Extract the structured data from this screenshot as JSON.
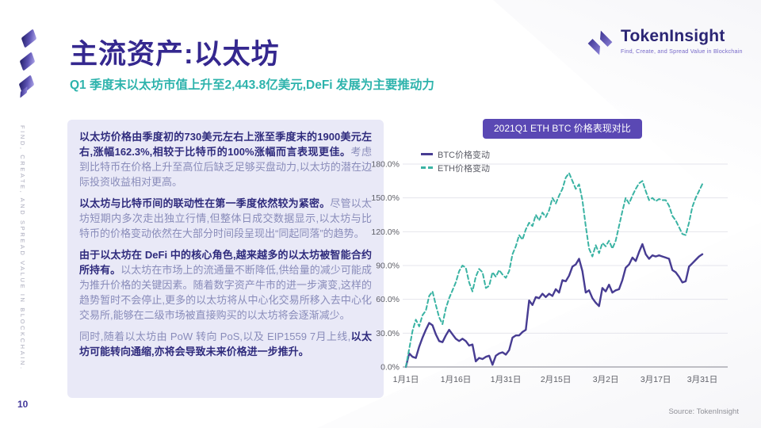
{
  "slide": {
    "title": "主流资产:以太坊",
    "subtitle": "Q1 季度末以太坊市值上升至2,443.8亿美元,DeFi 发展为主要推动力",
    "page_number": "10",
    "source": "Source: TokenInsight",
    "sidebar_vertical_text": "FIND, CREATE, AND SPREAD VALUE IN BLOCKCHAIN."
  },
  "logo": {
    "name": "TokenInsight",
    "tagline": "Find, Create, and Spread Value in Blockchain"
  },
  "paragraphs": [
    {
      "segments": [
        {
          "bold": true,
          "text": "以太坊价格由季度初的730美元左右上涨至季度末的1900美元左右,涨幅162.3%,相较于比特币的100%涨幅而言表现更佳。"
        },
        {
          "bold": false,
          "text": "考虑到比特币在价格上升至高位后缺乏足够买盘动力,以太坊的潜在边际投资收益相对更高。"
        }
      ]
    },
    {
      "segments": [
        {
          "bold": true,
          "text": "以太坊与比特币间的联动性在第一季度依然较为紧密。"
        },
        {
          "bold": false,
          "text": "尽管以太坊短期内多次走出独立行情,但整体日成交数据显示,以太坊与比特币的价格变动依然在大部分时间段呈现出“同起同落”的趋势。"
        }
      ]
    },
    {
      "segments": [
        {
          "bold": true,
          "text": "由于以太坊在 DeFi 中的核心角色,越来越多的以太坊被智能合约所持有。"
        },
        {
          "bold": false,
          "text": "以太坊在市场上的流通量不断降低,供给量的减少可能成为推升价格的关键因素。随着数字资产牛市的进一步演变,这样的趋势暂时不会停止,更多的以太坊将从中心化交易所移入去中心化交易所,能够在二级市场被直接购买的以太坊将会逐渐减少。"
        }
      ]
    },
    {
      "segments": [
        {
          "bold": false,
          "text": "同时,随着以太坊由 PoW 转向 PoS,以及 EIP1559 7月上线,"
        },
        {
          "bold": true,
          "text": "以太坊可能转向通缩,亦将会导致未来价格进一步推升。"
        }
      ]
    }
  ],
  "colors": {
    "accent_purple": "#5a48b4",
    "title_indigo": "#35288f",
    "subtitle_teal": "#2db3ac",
    "panel_lavender": "#e9e9f7",
    "btc_line": "#473c92",
    "eth_line": "#3ab3a3"
  },
  "chart_data": {
    "type": "line",
    "title": "2021Q1 ETH BTC 价格表现对比",
    "x_tick_labels": [
      "1月1日",
      "1月16日",
      "1月31日",
      "2月15日",
      "3月2日",
      "3月17日",
      "3月31日"
    ],
    "x_tick_days": [
      0,
      15,
      30,
      45,
      60,
      75,
      89
    ],
    "y_ticks": [
      "0.0%",
      "30.0%",
      "60.0%",
      "90.0%",
      "120.0%",
      "150.0%",
      "180.0%"
    ],
    "y_tick_values": [
      0,
      30,
      60,
      90,
      120,
      150,
      180
    ],
    "ylim": [
      0,
      180
    ],
    "x_range_days": [
      0,
      89
    ],
    "grid": true,
    "legend_position": "top-left",
    "series": [
      {
        "id": "btc",
        "name": "BTC价格变动",
        "color": "#473c92",
        "style": "solid",
        "width": 2.4,
        "points": [
          [
            0,
            0
          ],
          [
            1,
            12
          ],
          [
            2,
            9
          ],
          [
            3,
            8
          ],
          [
            4,
            18
          ],
          [
            5,
            26
          ],
          [
            6,
            33
          ],
          [
            7,
            39
          ],
          [
            8,
            37
          ],
          [
            9,
            29
          ],
          [
            10,
            23
          ],
          [
            11,
            22
          ],
          [
            12,
            28
          ],
          [
            13,
            33
          ],
          [
            14,
            29
          ],
          [
            15,
            25
          ],
          [
            16,
            23
          ],
          [
            17,
            25
          ],
          [
            18,
            23
          ],
          [
            19,
            19
          ],
          [
            20,
            20
          ],
          [
            21,
            5
          ],
          [
            22,
            8
          ],
          [
            23,
            7
          ],
          [
            24,
            9
          ],
          [
            25,
            10
          ],
          [
            26,
            2
          ],
          [
            27,
            10
          ],
          [
            28,
            12
          ],
          [
            29,
            13
          ],
          [
            30,
            11
          ],
          [
            31,
            15
          ],
          [
            32,
            26
          ],
          [
            33,
            28
          ],
          [
            34,
            28
          ],
          [
            35,
            31
          ],
          [
            36,
            33
          ],
          [
            37,
            59
          ],
          [
            38,
            55
          ],
          [
            39,
            62
          ],
          [
            40,
            61
          ],
          [
            41,
            65
          ],
          [
            42,
            62
          ],
          [
            43,
            65
          ],
          [
            44,
            63
          ],
          [
            45,
            69
          ],
          [
            46,
            66
          ],
          [
            47,
            77
          ],
          [
            48,
            76
          ],
          [
            49,
            81
          ],
          [
            50,
            89
          ],
          [
            51,
            91
          ],
          [
            52,
            96
          ],
          [
            53,
            85
          ],
          [
            54,
            66
          ],
          [
            55,
            68
          ],
          [
            56,
            61
          ],
          [
            57,
            57
          ],
          [
            58,
            54
          ],
          [
            59,
            70
          ],
          [
            60,
            67
          ],
          [
            61,
            73
          ],
          [
            62,
            66
          ],
          [
            63,
            68
          ],
          [
            64,
            69
          ],
          [
            65,
            77
          ],
          [
            66,
            88
          ],
          [
            67,
            91
          ],
          [
            68,
            97
          ],
          [
            69,
            94
          ],
          [
            70,
            102
          ],
          [
            71,
            109
          ],
          [
            72,
            100
          ],
          [
            73,
            96
          ],
          [
            74,
            99
          ],
          [
            75,
            98
          ],
          [
            76,
            99
          ],
          [
            77,
            98
          ],
          [
            78,
            97
          ],
          [
            79,
            96
          ],
          [
            80,
            86
          ],
          [
            81,
            84
          ],
          [
            82,
            80
          ],
          [
            83,
            75
          ],
          [
            84,
            76
          ],
          [
            85,
            89
          ],
          [
            86,
            92
          ],
          [
            87,
            95
          ],
          [
            88,
            98
          ],
          [
            89,
            100
          ]
        ]
      },
      {
        "id": "eth",
        "name": "ETH价格变动",
        "color": "#3ab3a3",
        "style": "dashed",
        "width": 2,
        "points": [
          [
            0,
            0
          ],
          [
            1,
            16
          ],
          [
            2,
            32
          ],
          [
            3,
            42
          ],
          [
            4,
            36
          ],
          [
            5,
            46
          ],
          [
            6,
            50
          ],
          [
            7,
            63
          ],
          [
            8,
            67
          ],
          [
            9,
            55
          ],
          [
            10,
            44
          ],
          [
            11,
            38
          ],
          [
            12,
            52
          ],
          [
            13,
            61
          ],
          [
            14,
            68
          ],
          [
            15,
            75
          ],
          [
            16,
            85
          ],
          [
            17,
            90
          ],
          [
            18,
            88
          ],
          [
            19,
            75
          ],
          [
            20,
            67
          ],
          [
            21,
            80
          ],
          [
            22,
            87
          ],
          [
            23,
            84
          ],
          [
            24,
            70
          ],
          [
            25,
            72
          ],
          [
            26,
            84
          ],
          [
            27,
            80
          ],
          [
            28,
            86
          ],
          [
            29,
            82
          ],
          [
            30,
            79
          ],
          [
            31,
            85
          ],
          [
            32,
            100
          ],
          [
            33,
            107
          ],
          [
            34,
            117
          ],
          [
            35,
            113
          ],
          [
            36,
            122
          ],
          [
            37,
            128
          ],
          [
            38,
            125
          ],
          [
            39,
            135
          ],
          [
            40,
            130
          ],
          [
            41,
            137
          ],
          [
            42,
            133
          ],
          [
            43,
            139
          ],
          [
            44,
            150
          ],
          [
            45,
            145
          ],
          [
            46,
            152
          ],
          [
            47,
            158
          ],
          [
            48,
            168
          ],
          [
            49,
            172
          ],
          [
            50,
            165
          ],
          [
            51,
            158
          ],
          [
            52,
            162
          ],
          [
            53,
            148
          ],
          [
            54,
            125
          ],
          [
            55,
            105
          ],
          [
            56,
            98
          ],
          [
            57,
            108
          ],
          [
            58,
            101
          ],
          [
            59,
            110
          ],
          [
            60,
            107
          ],
          [
            61,
            112
          ],
          [
            62,
            105
          ],
          [
            63,
            112
          ],
          [
            64,
            125
          ],
          [
            65,
            138
          ],
          [
            66,
            150
          ],
          [
            67,
            145
          ],
          [
            68,
            152
          ],
          [
            69,
            158
          ],
          [
            70,
            163
          ],
          [
            71,
            165
          ],
          [
            72,
            156
          ],
          [
            73,
            148
          ],
          [
            74,
            150
          ],
          [
            75,
            147
          ],
          [
            76,
            149
          ],
          [
            77,
            148
          ],
          [
            78,
            148
          ],
          [
            79,
            143
          ],
          [
            80,
            134
          ],
          [
            81,
            130
          ],
          [
            82,
            124
          ],
          [
            83,
            118
          ],
          [
            84,
            117
          ],
          [
            85,
            128
          ],
          [
            86,
            142
          ],
          [
            87,
            150
          ],
          [
            88,
            156
          ],
          [
            89,
            162.3
          ]
        ]
      }
    ]
  }
}
